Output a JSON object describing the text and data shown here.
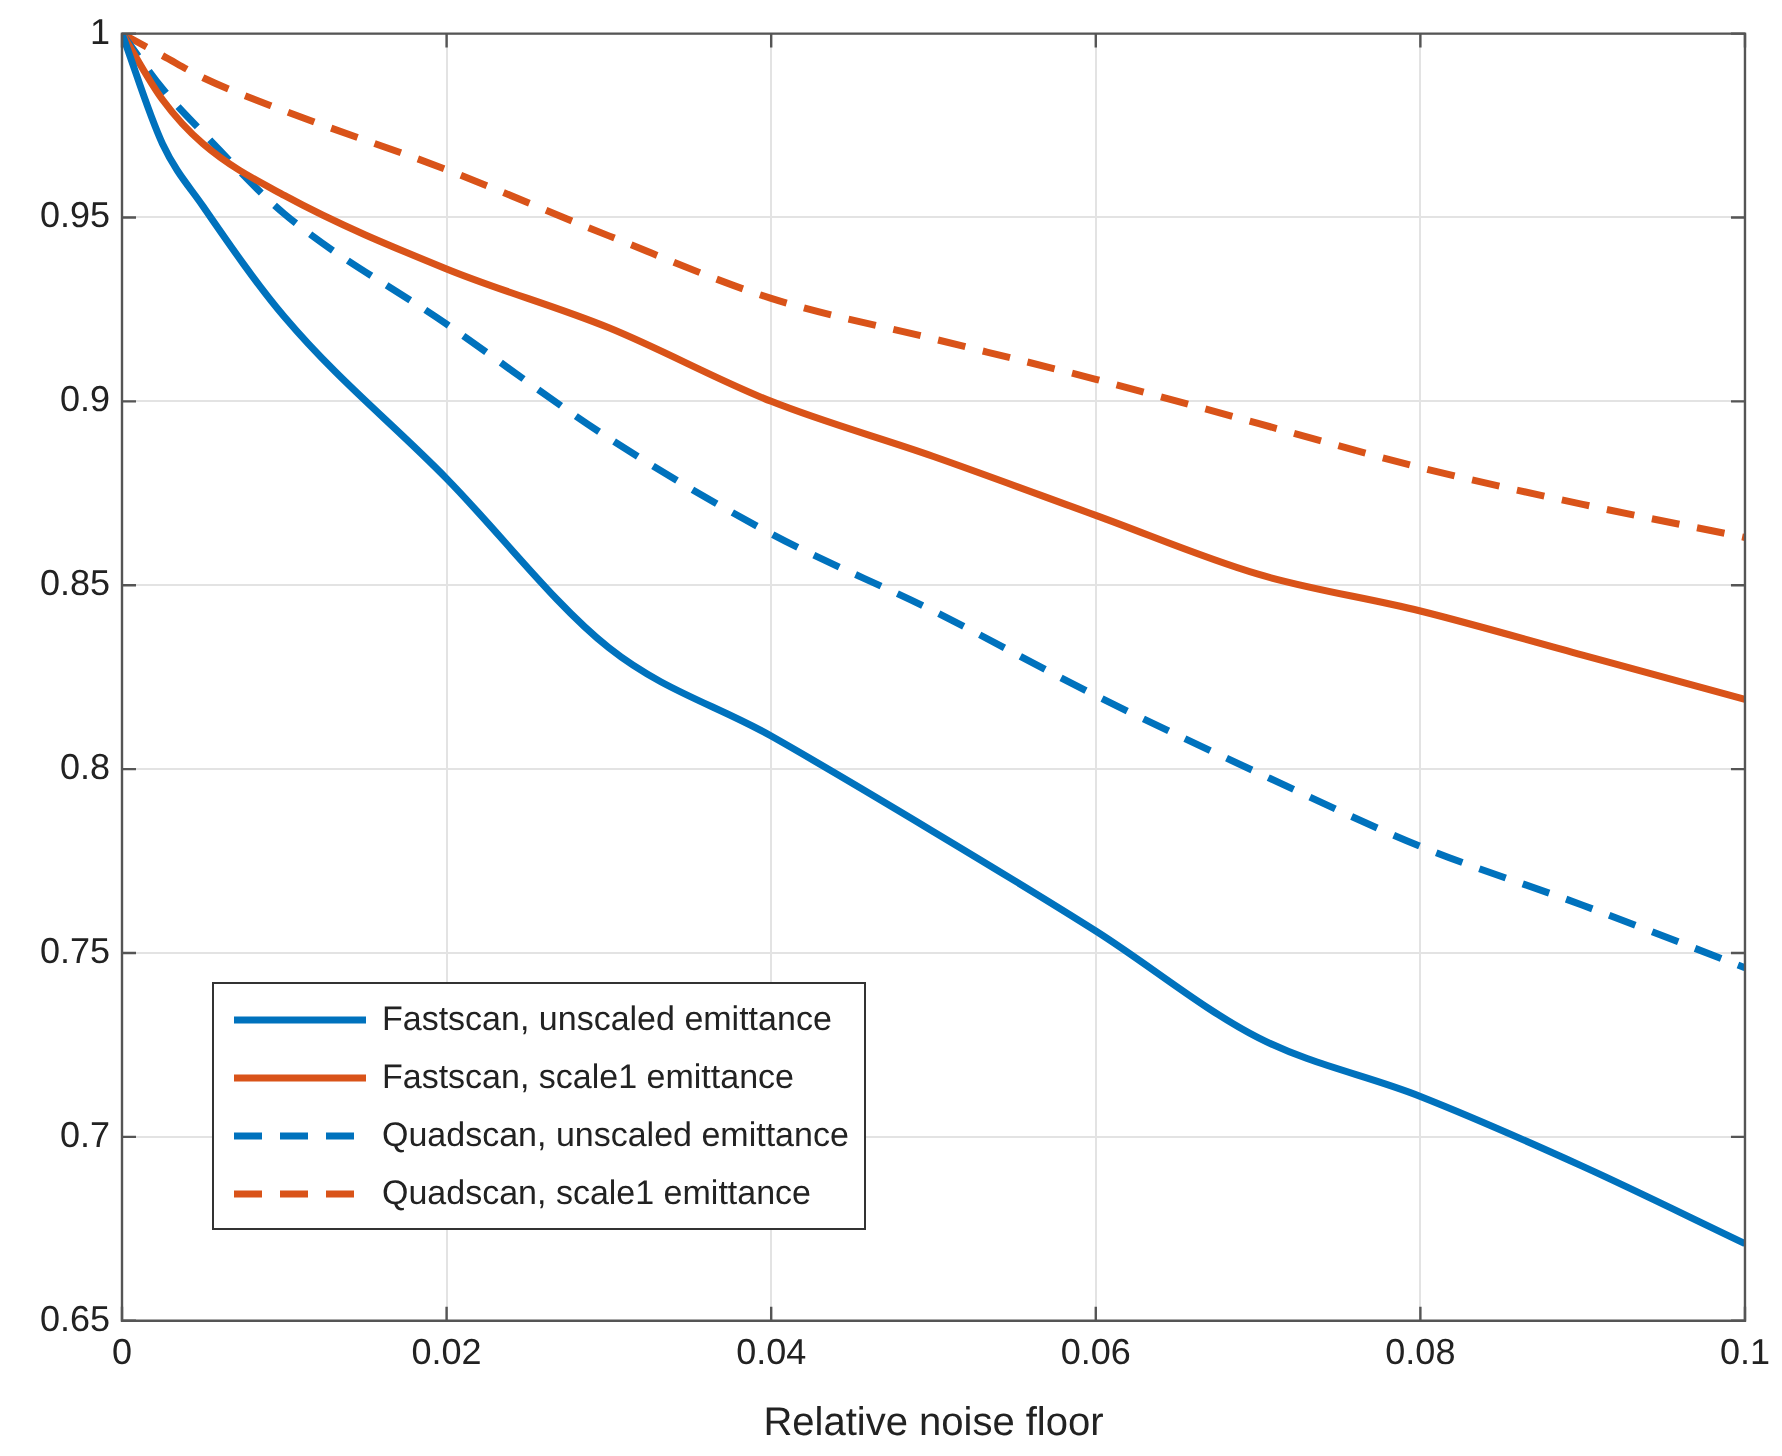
{
  "chart_data": {
    "type": "line",
    "xlabel": "Relative noise floor",
    "xlim": [
      0,
      0.1
    ],
    "xticks": [
      0,
      0.02,
      0.04,
      0.06,
      0.08,
      0.1
    ],
    "ylim": [
      0.65,
      1
    ],
    "yticks": [
      0.65,
      0.7,
      0.75,
      0.8,
      0.85,
      0.9,
      0.95,
      1
    ],
    "grid": true,
    "legend": "bottom left",
    "marker": "none",
    "x": [
      0,
      0.0025,
      0.005,
      0.01,
      0.02,
      0.03,
      0.04,
      0.05,
      0.06,
      0.07,
      0.08,
      0.09,
      0.1
    ],
    "series": [
      {
        "name": "Fastscan, unscaled emittance",
        "color": "#0072bd",
        "line_style": "solid",
        "values": [
          1,
          0.97,
          0.953,
          0.923,
          0.879,
          0.833,
          0.809,
          0.783,
          0.756,
          0.727,
          0.711,
          0.692,
          0.671
        ]
      },
      {
        "name": "Fastscan, scale1 emittance",
        "color": "#d95319",
        "line_style": "solid",
        "values": [
          1,
          0.982,
          0.97,
          0.956,
          0.936,
          0.92,
          0.9,
          0.885,
          0.869,
          0.853,
          0.843,
          0.831,
          0.819
        ]
      },
      {
        "name": "Quadscan, unscaled emittance",
        "color": "#0072bd",
        "line_style": "dashed",
        "values": [
          1,
          0.985,
          0.973,
          0.951,
          0.921,
          0.89,
          0.864,
          0.843,
          0.82,
          0.799,
          0.779,
          0.763,
          0.746
        ]
      },
      {
        "name": "Quadscan, scale1 emittance",
        "color": "#d95319",
        "line_style": "dashed",
        "values": [
          1,
          0.994,
          0.988,
          0.979,
          0.963,
          0.945,
          0.928,
          0.917,
          0.906,
          0.894,
          0.882,
          0.872,
          0.863
        ]
      }
    ]
  }
}
